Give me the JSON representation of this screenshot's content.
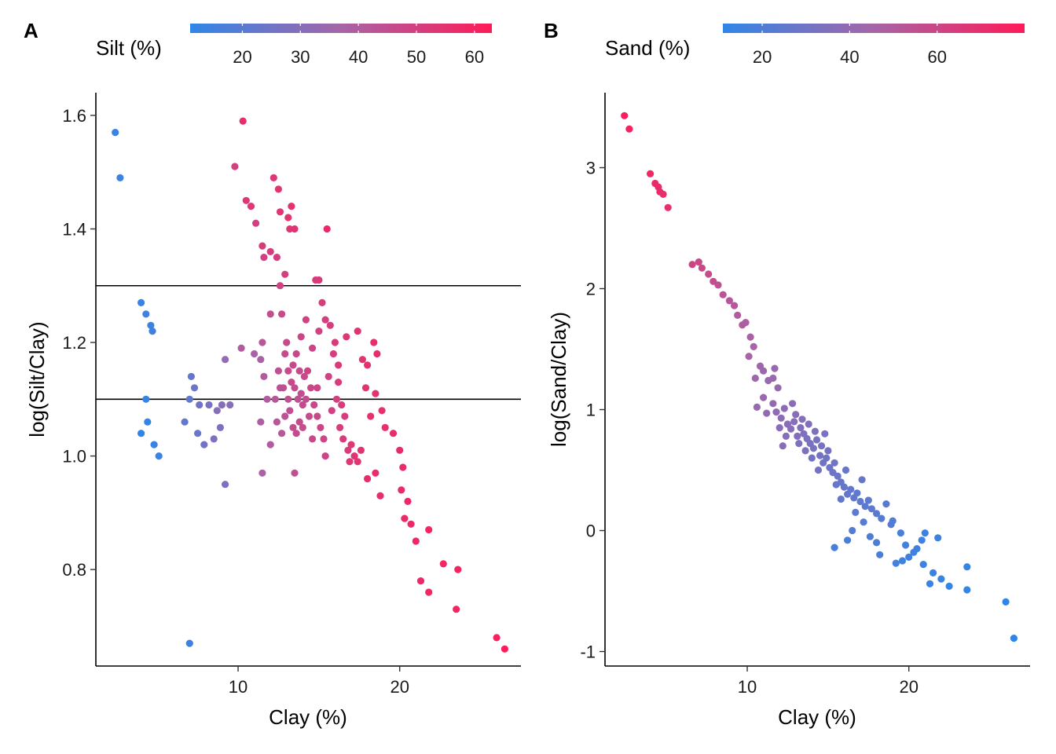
{
  "chart_data": [
    {
      "panel": "A",
      "type": "scatter",
      "xlabel": "Clay (%)",
      "ylabel": "log(Silt/Clay)",
      "xlim": [
        1.2,
        27.5
      ],
      "ylim": [
        0.63,
        1.64
      ],
      "xticks": [
        10,
        20
      ],
      "yticks": [
        0.8,
        1.0,
        1.2,
        1.4,
        1.6
      ],
      "ytick_labels": [
        "0.8",
        "1.0",
        "1.2",
        "1.4",
        "1.6"
      ],
      "hlines": [
        1.1,
        1.3
      ],
      "color_legend": {
        "title": "Silt (%)",
        "min": 11,
        "max": 63,
        "ticks": [
          20,
          30,
          40,
          50,
          60
        ],
        "low_color": "#2f86e8",
        "mid_color": "#a665a8",
        "high_color": "#ff1a57"
      },
      "points": [
        [
          2.4,
          1.57,
          13
        ],
        [
          2.7,
          1.49,
          14
        ],
        [
          4.0,
          1.27,
          13
        ],
        [
          4.3,
          1.25,
          14
        ],
        [
          4.6,
          1.23,
          14
        ],
        [
          4.7,
          1.22,
          15
        ],
        [
          4.3,
          1.1,
          12
        ],
        [
          4.4,
          1.06,
          12
        ],
        [
          4.0,
          1.04,
          11
        ],
        [
          4.8,
          1.02,
          13
        ],
        [
          5.1,
          1.0,
          14
        ],
        [
          7.0,
          0.67,
          14
        ],
        [
          7.1,
          1.14,
          22
        ],
        [
          7.3,
          1.12,
          24
        ],
        [
          7.0,
          1.1,
          22
        ],
        [
          7.6,
          1.09,
          25
        ],
        [
          6.7,
          1.06,
          22
        ],
        [
          7.5,
          1.04,
          24
        ],
        [
          7.9,
          1.02,
          26
        ],
        [
          8.2,
          1.09,
          27
        ],
        [
          8.7,
          1.08,
          30
        ],
        [
          9.0,
          1.09,
          30
        ],
        [
          9.5,
          1.09,
          30
        ],
        [
          9.2,
          1.17,
          33
        ],
        [
          8.9,
          1.05,
          28
        ],
        [
          8.5,
          1.03,
          29
        ],
        [
          9.2,
          0.95,
          28
        ],
        [
          9.8,
          1.51,
          50
        ],
        [
          10.3,
          1.59,
          56
        ],
        [
          10.5,
          1.45,
          53
        ],
        [
          10.8,
          1.44,
          53
        ],
        [
          10.2,
          1.19,
          40
        ],
        [
          11.0,
          1.18,
          38
        ],
        [
          11.4,
          1.17,
          38
        ],
        [
          11.1,
          1.41,
          50
        ],
        [
          11.5,
          1.37,
          52
        ],
        [
          11.6,
          1.35,
          50
        ],
        [
          12.0,
          1.36,
          51
        ],
        [
          12.4,
          1.35,
          51
        ],
        [
          12.2,
          1.49,
          53
        ],
        [
          12.5,
          1.47,
          54
        ],
        [
          12.6,
          1.43,
          53
        ],
        [
          13.1,
          1.42,
          54
        ],
        [
          13.3,
          1.44,
          55
        ],
        [
          13.2,
          1.4,
          53
        ],
        [
          13.5,
          1.4,
          54
        ],
        [
          12.9,
          1.32,
          50
        ],
        [
          12.6,
          1.3,
          49
        ],
        [
          12.7,
          1.25,
          46
        ],
        [
          12.0,
          1.25,
          45
        ],
        [
          11.5,
          1.2,
          42
        ],
        [
          11.6,
          1.14,
          40
        ],
        [
          11.4,
          1.06,
          39
        ],
        [
          11.8,
          1.1,
          40
        ],
        [
          11.5,
          0.97,
          38
        ],
        [
          12.0,
          1.02,
          40
        ],
        [
          12.4,
          1.06,
          42
        ],
        [
          12.6,
          1.12,
          44
        ],
        [
          12.9,
          1.18,
          46
        ],
        [
          13.1,
          1.15,
          46
        ],
        [
          13.3,
          1.13,
          46
        ],
        [
          13.5,
          1.12,
          45
        ],
        [
          13.7,
          1.1,
          44
        ],
        [
          13.9,
          1.11,
          45
        ],
        [
          14.2,
          1.1,
          45
        ],
        [
          13.2,
          1.08,
          44
        ],
        [
          13.4,
          1.05,
          45
        ],
        [
          13.6,
          1.04,
          46
        ],
        [
          13.8,
          1.06,
          46
        ],
        [
          14.0,
          1.09,
          46
        ],
        [
          14.3,
          1.15,
          48
        ],
        [
          14.5,
          1.12,
          47
        ],
        [
          14.7,
          1.09,
          47
        ],
        [
          14.9,
          1.07,
          47
        ],
        [
          15.1,
          1.05,
          48
        ],
        [
          15.3,
          1.03,
          48
        ],
        [
          13.9,
          1.21,
          48
        ],
        [
          14.2,
          1.24,
          49
        ],
        [
          14.6,
          1.19,
          48
        ],
        [
          15.0,
          1.22,
          49
        ],
        [
          15.4,
          1.24,
          50
        ],
        [
          15.2,
          1.27,
          51
        ],
        [
          15.0,
          1.31,
          52
        ],
        [
          14.8,
          1.31,
          52
        ],
        [
          13.5,
          0.97,
          44
        ],
        [
          15.5,
          1.4,
          58
        ],
        [
          16.0,
          1.2,
          52
        ],
        [
          16.2,
          1.13,
          51
        ],
        [
          16.1,
          1.1,
          50
        ],
        [
          16.4,
          1.09,
          51
        ],
        [
          16.6,
          1.07,
          51
        ],
        [
          16.3,
          1.05,
          51
        ],
        [
          16.5,
          1.03,
          52
        ],
        [
          16.8,
          1.01,
          52
        ],
        [
          17.0,
          1.02,
          53
        ],
        [
          16.9,
          0.99,
          53
        ],
        [
          17.2,
          1.0,
          54
        ],
        [
          17.4,
          0.99,
          54
        ],
        [
          17.6,
          1.01,
          54
        ],
        [
          16.2,
          1.16,
          52
        ],
        [
          16.7,
          1.21,
          53
        ],
        [
          17.4,
          1.22,
          54
        ],
        [
          17.7,
          1.17,
          54
        ],
        [
          18.0,
          1.16,
          55
        ],
        [
          18.4,
          1.2,
          56
        ],
        [
          18.6,
          1.18,
          56
        ],
        [
          17.9,
          1.12,
          54
        ],
        [
          18.5,
          1.11,
          55
        ],
        [
          18.9,
          1.08,
          55
        ],
        [
          18.2,
          1.07,
          55
        ],
        [
          18.5,
          0.97,
          56
        ],
        [
          18.8,
          0.93,
          56
        ],
        [
          18.0,
          0.96,
          56
        ],
        [
          19.1,
          1.05,
          55
        ],
        [
          19.6,
          1.04,
          56
        ],
        [
          20.0,
          1.01,
          57
        ],
        [
          20.2,
          0.98,
          57
        ],
        [
          20.1,
          0.94,
          57
        ],
        [
          20.5,
          0.92,
          58
        ],
        [
          20.3,
          0.89,
          57
        ],
        [
          20.7,
          0.88,
          58
        ],
        [
          21.0,
          0.85,
          58
        ],
        [
          21.8,
          0.87,
          59
        ],
        [
          21.3,
          0.78,
          58
        ],
        [
          21.8,
          0.76,
          59
        ],
        [
          22.7,
          0.81,
          59
        ],
        [
          23.6,
          0.8,
          60
        ],
        [
          23.5,
          0.73,
          59
        ],
        [
          26.0,
          0.68,
          61
        ],
        [
          26.5,
          0.66,
          62
        ],
        [
          13.4,
          1.16,
          47
        ],
        [
          13.6,
          1.18,
          47
        ],
        [
          13.8,
          1.15,
          46
        ],
        [
          14.1,
          1.14,
          46
        ],
        [
          13.1,
          1.1,
          44
        ],
        [
          12.8,
          1.12,
          44
        ],
        [
          12.3,
          1.1,
          42
        ],
        [
          12.7,
          1.04,
          42
        ],
        [
          14.4,
          1.07,
          46
        ],
        [
          14.9,
          1.12,
          48
        ],
        [
          15.6,
          1.14,
          49
        ],
        [
          15.8,
          1.08,
          49
        ],
        [
          15.9,
          1.18,
          51
        ],
        [
          15.7,
          1.23,
          51
        ],
        [
          14.0,
          1.05,
          45
        ],
        [
          13.0,
          1.2,
          46
        ],
        [
          12.5,
          1.15,
          44
        ],
        [
          12.9,
          1.07,
          43
        ],
        [
          14.6,
          1.03,
          47
        ],
        [
          15.4,
          1.0,
          48
        ]
      ]
    },
    {
      "panel": "B",
      "type": "scatter",
      "xlabel": "Clay (%)",
      "ylabel": "log(Sand/Clay)",
      "xlim": [
        1.2,
        27.5
      ],
      "ylim": [
        -1.12,
        3.62
      ],
      "xticks": [
        10,
        20
      ],
      "yticks": [
        -1,
        0,
        1,
        2,
        3
      ],
      "ytick_labels": [
        "-1",
        "0",
        "1",
        "2",
        "3"
      ],
      "hlines": [],
      "color_legend": {
        "title": "Sand (%)",
        "min": 11,
        "max": 80,
        "ticks": [
          20,
          40,
          60
        ],
        "low_color": "#2f86e8",
        "mid_color": "#a665a8",
        "high_color": "#ff1a57"
      },
      "points": [
        [
          2.4,
          3.43,
          78
        ],
        [
          2.7,
          3.32,
          77
        ],
        [
          4.0,
          2.95,
          74
        ],
        [
          4.3,
          2.87,
          73
        ],
        [
          4.5,
          2.84,
          72
        ],
        [
          4.6,
          2.8,
          72
        ],
        [
          4.8,
          2.78,
          71
        ],
        [
          5.1,
          2.67,
          70
        ],
        [
          6.6,
          2.2,
          60
        ],
        [
          7.0,
          2.22,
          59
        ],
        [
          7.2,
          2.17,
          58
        ],
        [
          7.6,
          2.12,
          57
        ],
        [
          7.9,
          2.06,
          56
        ],
        [
          8.2,
          2.03,
          55
        ],
        [
          8.5,
          1.95,
          54
        ],
        [
          8.9,
          1.9,
          52
        ],
        [
          9.2,
          1.86,
          51
        ],
        [
          9.4,
          1.78,
          50
        ],
        [
          9.7,
          1.7,
          49
        ],
        [
          9.9,
          1.72,
          48
        ],
        [
          10.2,
          1.6,
          47
        ],
        [
          10.4,
          1.52,
          46
        ],
        [
          10.1,
          1.44,
          46
        ],
        [
          10.8,
          1.36,
          44
        ],
        [
          11.0,
          1.32,
          43
        ],
        [
          11.3,
          1.24,
          42
        ],
        [
          11.6,
          1.26,
          42
        ],
        [
          11.7,
          1.34,
          42
        ],
        [
          11.9,
          1.18,
          41
        ],
        [
          10.5,
          1.26,
          44
        ],
        [
          10.6,
          1.02,
          41
        ],
        [
          11.0,
          1.1,
          42
        ],
        [
          11.2,
          0.97,
          40
        ],
        [
          11.6,
          1.05,
          40
        ],
        [
          11.8,
          0.98,
          39
        ],
        [
          12.1,
          0.93,
          38
        ],
        [
          12.3,
          1.01,
          38
        ],
        [
          12.5,
          0.88,
          37
        ],
        [
          12.0,
          0.85,
          37
        ],
        [
          12.7,
          0.84,
          36
        ],
        [
          12.9,
          0.9,
          36
        ],
        [
          13.1,
          0.78,
          35
        ],
        [
          13.3,
          0.85,
          35
        ],
        [
          13.5,
          0.8,
          34
        ],
        [
          13.2,
          0.72,
          34
        ],
        [
          13.7,
          0.76,
          33
        ],
        [
          13.9,
          0.72,
          33
        ],
        [
          14.1,
          0.68,
          32
        ],
        [
          14.3,
          0.75,
          32
        ],
        [
          14.5,
          0.62,
          31
        ],
        [
          14.0,
          0.6,
          31
        ],
        [
          14.7,
          0.56,
          30
        ],
        [
          14.9,
          0.6,
          30
        ],
        [
          15.1,
          0.52,
          29
        ],
        [
          15.3,
          0.48,
          29
        ],
        [
          15.6,
          0.45,
          28
        ],
        [
          15.8,
          0.4,
          27
        ],
        [
          16.0,
          0.36,
          27
        ],
        [
          15.5,
          0.38,
          27
        ],
        [
          16.2,
          0.3,
          26
        ],
        [
          16.4,
          0.34,
          26
        ],
        [
          16.6,
          0.27,
          25
        ],
        [
          16.8,
          0.31,
          25
        ],
        [
          17.0,
          0.24,
          25
        ],
        [
          17.3,
          0.2,
          24
        ],
        [
          17.5,
          0.25,
          24
        ],
        [
          17.7,
          0.18,
          24
        ],
        [
          18.0,
          0.14,
          23
        ],
        [
          18.3,
          0.1,
          23
        ],
        [
          18.6,
          0.22,
          23
        ],
        [
          18.9,
          0.05,
          22
        ],
        [
          16.7,
          0.15,
          24
        ],
        [
          17.2,
          0.07,
          23
        ],
        [
          16.5,
          0.0,
          22
        ],
        [
          17.6,
          -0.05,
          21
        ],
        [
          18.0,
          -0.1,
          20
        ],
        [
          19.0,
          0.08,
          21
        ],
        [
          19.5,
          -0.02,
          19
        ],
        [
          19.6,
          -0.25,
          17
        ],
        [
          19.2,
          -0.27,
          17
        ],
        [
          20.0,
          -0.22,
          16
        ],
        [
          20.3,
          -0.18,
          16
        ],
        [
          20.5,
          -0.15,
          16
        ],
        [
          20.8,
          -0.08,
          15
        ],
        [
          21.0,
          -0.02,
          15
        ],
        [
          21.3,
          -0.44,
          14
        ],
        [
          21.5,
          -0.35,
          14
        ],
        [
          22.0,
          -0.4,
          14
        ],
        [
          22.5,
          -0.46,
          13
        ],
        [
          23.6,
          -0.3,
          13
        ],
        [
          23.6,
          -0.49,
          13
        ],
        [
          26.0,
          -0.59,
          12
        ],
        [
          26.5,
          -0.89,
          11
        ],
        [
          15.4,
          -0.14,
          18
        ],
        [
          16.2,
          -0.08,
          19
        ],
        [
          12.8,
          1.05,
          38
        ],
        [
          13.0,
          0.96,
          37
        ],
        [
          13.4,
          0.92,
          36
        ],
        [
          14.2,
          0.82,
          34
        ],
        [
          13.8,
          0.88,
          35
        ],
        [
          14.6,
          0.7,
          32
        ],
        [
          15.0,
          0.66,
          31
        ],
        [
          15.4,
          0.56,
          30
        ],
        [
          12.4,
          0.78,
          36
        ],
        [
          13.6,
          0.66,
          33
        ],
        [
          14.4,
          0.5,
          30
        ],
        [
          15.8,
          0.26,
          26
        ],
        [
          16.1,
          0.5,
          28
        ],
        [
          17.1,
          0.42,
          27
        ],
        [
          18.2,
          -0.2,
          19
        ],
        [
          19.8,
          -0.12,
          17
        ],
        [
          20.9,
          -0.28,
          15
        ],
        [
          21.8,
          -0.06,
          15
        ],
        [
          12.2,
          0.7,
          37
        ],
        [
          14.8,
          0.8,
          32
        ]
      ]
    }
  ],
  "panel_labels": [
    "A",
    "B"
  ]
}
